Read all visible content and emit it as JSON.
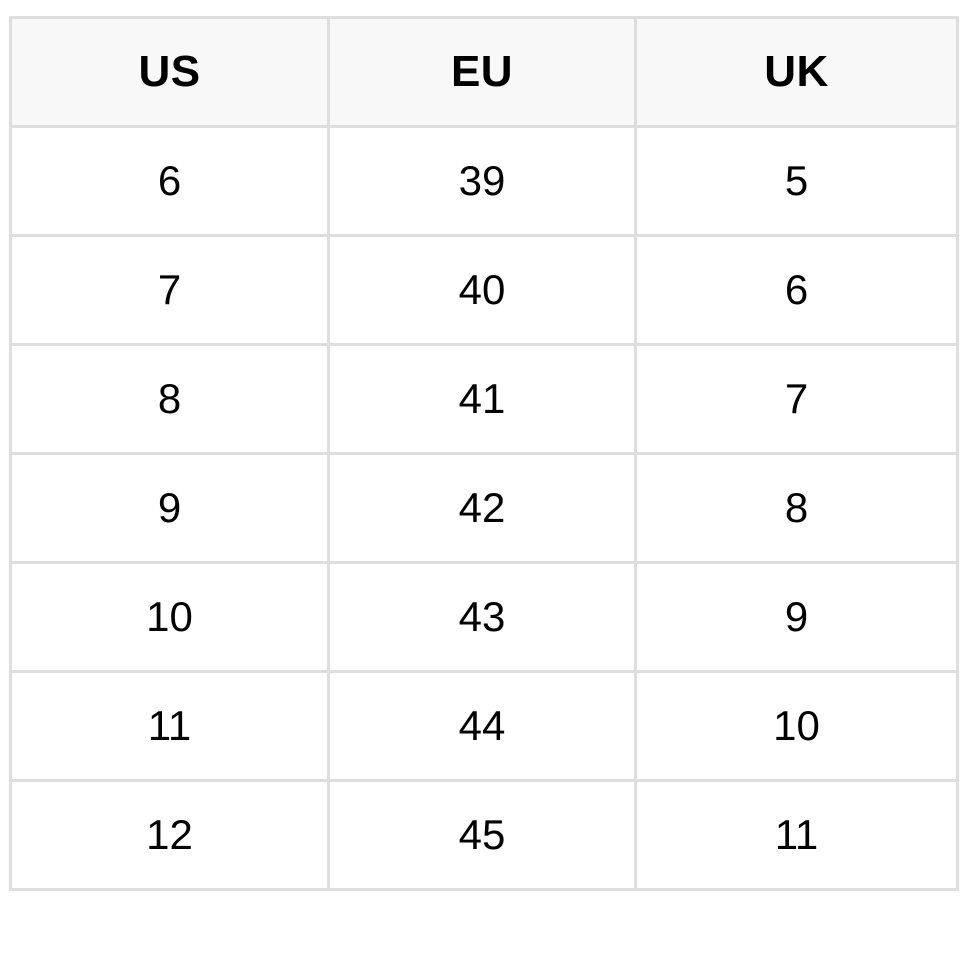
{
  "size_chart": {
    "headers": [
      "US",
      "EU",
      "UK"
    ],
    "rows": [
      [
        "6",
        "39",
        "5"
      ],
      [
        "7",
        "40",
        "6"
      ],
      [
        "8",
        "41",
        "7"
      ],
      [
        "9",
        "42",
        "8"
      ],
      [
        "10",
        "43",
        "9"
      ],
      [
        "11",
        "44",
        "10"
      ],
      [
        "12",
        "45",
        "11"
      ]
    ]
  },
  "colors": {
    "header_background": "#f8f8f8",
    "grid_line": "#dedede",
    "text": "#000000"
  }
}
